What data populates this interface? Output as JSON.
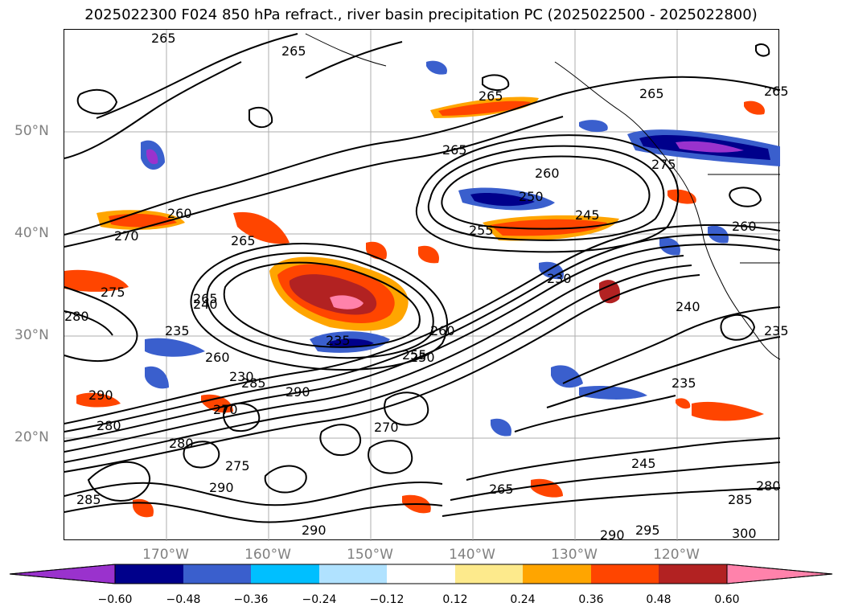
{
  "title": "2025022300 F024 850 hPa refract., river basin precipitation PC (2025022500 - 2025022800)",
  "lat_labels": [
    "50°N",
    "40°N",
    "30°N",
    "20°N"
  ],
  "lon_labels": [
    "170°W",
    "160°W",
    "150°W",
    "140°W",
    "130°W",
    "120°W"
  ],
  "colorbar": {
    "ticks": [
      "−0.60",
      "−0.48",
      "−0.36",
      "−0.24",
      "−0.12",
      "0.12",
      "0.24",
      "0.36",
      "0.48",
      "0.60"
    ],
    "colors": [
      "#9a32cd",
      "#00008b",
      "#3a5fcd",
      "#00bfff",
      "#b0e2ff",
      "#ffffff",
      "#fdea8c",
      "#ffa500",
      "#ff4500",
      "#b22222",
      "#ff82ab"
    ],
    "under_color": "#9a32cd",
    "over_color": "#ff82ab"
  },
  "contour_labels": [
    "265",
    "265",
    "265",
    "265",
    "265",
    "260",
    "260",
    "270",
    "265",
    "275",
    "280",
    "250",
    "255",
    "245",
    "240",
    "235",
    "230",
    "260",
    "285",
    "290",
    "290",
    "270",
    "280",
    "280",
    "275",
    "290",
    "285",
    "255",
    "260",
    "270",
    "265",
    "290",
    "290",
    "295",
    "300",
    "285",
    "280",
    "245",
    "235",
    "240",
    "275",
    "260",
    "265",
    "235",
    "230",
    "250",
    "235",
    "265"
  ]
}
